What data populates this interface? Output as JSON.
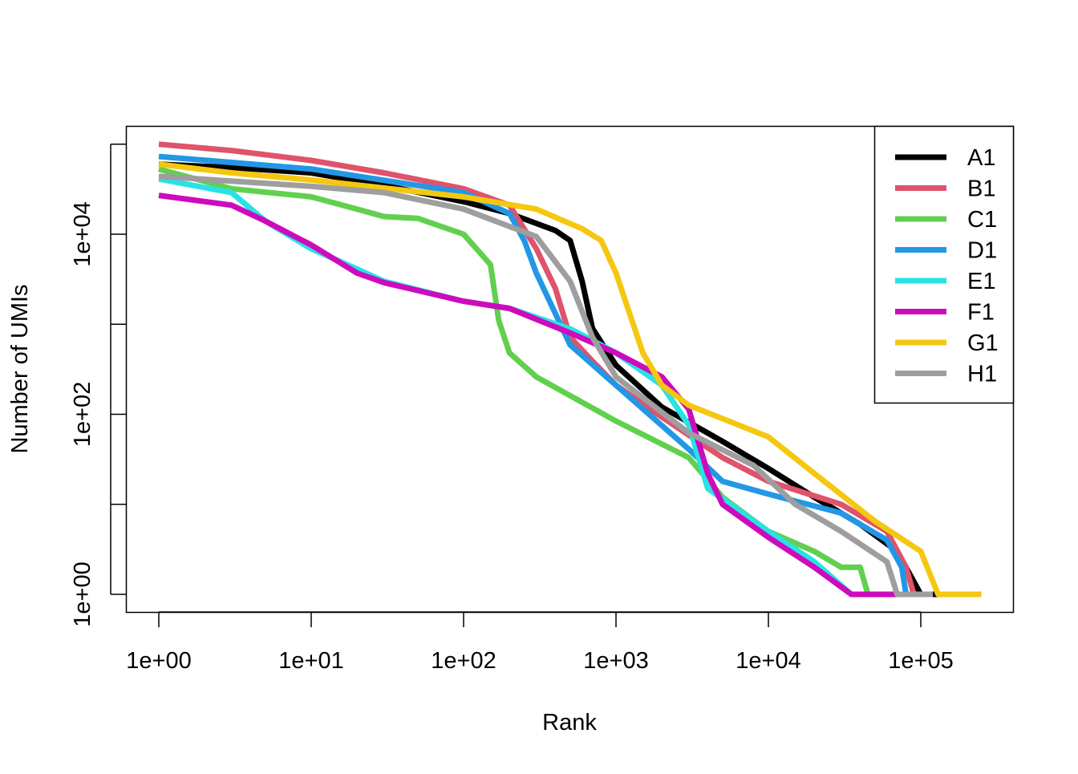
{
  "chart_data": {
    "type": "line",
    "title": "",
    "xlabel": "Rank",
    "ylabel": "Number of UMIs",
    "xscale": "log",
    "yscale": "log",
    "xlim": [
      1,
      250000
    ],
    "ylim": [
      1,
      100000
    ],
    "x_ticks": [
      1,
      10,
      100,
      1000,
      10000,
      100000
    ],
    "x_tick_labels": [
      "1e+00",
      "1e+01",
      "1e+02",
      "1e+03",
      "1e+04",
      "1e+05"
    ],
    "y_ticks": [
      1,
      10,
      100,
      1000,
      10000,
      100000
    ],
    "y_tick_labels": [
      "1e+00",
      "",
      "1e+02",
      "",
      "1e+04",
      ""
    ],
    "grid": false,
    "legend_position": "top-right",
    "series": [
      {
        "name": "A1",
        "color": "#000000",
        "points": [
          [
            1,
            60000
          ],
          [
            3,
            55000
          ],
          [
            10,
            48000
          ],
          [
            30,
            35000
          ],
          [
            100,
            23000
          ],
          [
            200,
            17000
          ],
          [
            400,
            11000
          ],
          [
            500,
            8500
          ],
          [
            600,
            3000
          ],
          [
            700,
            900
          ],
          [
            1000,
            350
          ],
          [
            2000,
            120
          ],
          [
            5000,
            50
          ],
          [
            10000,
            25
          ],
          [
            20000,
            12
          ],
          [
            40000,
            6
          ],
          [
            70000,
            3
          ],
          [
            100000,
            1
          ],
          [
            140000,
            1
          ]
        ]
      },
      {
        "name": "B1",
        "color": "#DF536B",
        "points": [
          [
            1,
            100000
          ],
          [
            3,
            85000
          ],
          [
            10,
            66000
          ],
          [
            30,
            48000
          ],
          [
            100,
            32000
          ],
          [
            200,
            21000
          ],
          [
            300,
            6900
          ],
          [
            400,
            2500
          ],
          [
            500,
            720
          ],
          [
            700,
            390
          ],
          [
            1000,
            210
          ],
          [
            2000,
            93
          ],
          [
            5000,
            33
          ],
          [
            10000,
            18
          ],
          [
            30000,
            10
          ],
          [
            60000,
            5
          ],
          [
            80000,
            2
          ],
          [
            90000,
            1
          ]
        ]
      },
      {
        "name": "C1",
        "color": "#61D04F",
        "points": [
          [
            1,
            53000
          ],
          [
            3,
            32000
          ],
          [
            10,
            26000
          ],
          [
            20,
            19000
          ],
          [
            30,
            15700
          ],
          [
            50,
            15000
          ],
          [
            100,
            10000
          ],
          [
            150,
            4600
          ],
          [
            170,
            1100
          ],
          [
            200,
            480
          ],
          [
            300,
            260
          ],
          [
            1000,
            84
          ],
          [
            3000,
            33
          ],
          [
            5000,
            12
          ],
          [
            10000,
            5
          ],
          [
            20000,
            3
          ],
          [
            30000,
            2
          ],
          [
            40000,
            2
          ],
          [
            45000,
            1
          ]
        ]
      },
      {
        "name": "D1",
        "color": "#2297E6",
        "points": [
          [
            1,
            73000
          ],
          [
            10,
            53000
          ],
          [
            100,
            29000
          ],
          [
            200,
            17000
          ],
          [
            250,
            8500
          ],
          [
            300,
            3700
          ],
          [
            500,
            590
          ],
          [
            1000,
            210
          ],
          [
            3000,
            41
          ],
          [
            5000,
            18
          ],
          [
            10000,
            13
          ],
          [
            30000,
            8
          ],
          [
            60000,
            4
          ],
          [
            75000,
            2
          ],
          [
            80000,
            1
          ]
        ]
      },
      {
        "name": "E1",
        "color": "#28E2E5",
        "points": [
          [
            1,
            41000
          ],
          [
            3,
            29000
          ],
          [
            5,
            14000
          ],
          [
            10,
            6900
          ],
          [
            20,
            4100
          ],
          [
            30,
            3000
          ],
          [
            100,
            1800
          ],
          [
            200,
            1500
          ],
          [
            500,
            890
          ],
          [
            1000,
            480
          ],
          [
            2000,
            210
          ],
          [
            3000,
            76
          ],
          [
            4000,
            15
          ],
          [
            10000,
            5
          ],
          [
            20000,
            2.3
          ],
          [
            35000,
            1
          ],
          [
            50000,
            1
          ]
        ]
      },
      {
        "name": "F1",
        "color": "#CD0BBC",
        "points": [
          [
            1,
            27000
          ],
          [
            3,
            21000
          ],
          [
            5,
            14000
          ],
          [
            10,
            7600
          ],
          [
            20,
            3700
          ],
          [
            30,
            2900
          ],
          [
            100,
            1800
          ],
          [
            200,
            1500
          ],
          [
            500,
            800
          ],
          [
            1000,
            480
          ],
          [
            2000,
            260
          ],
          [
            3000,
            114
          ],
          [
            4000,
            22
          ],
          [
            5000,
            10
          ],
          [
            10000,
            4.3
          ],
          [
            20000,
            2
          ],
          [
            35000,
            1
          ],
          [
            90000,
            1
          ]
        ]
      },
      {
        "name": "G1",
        "color": "#F5C710",
        "points": [
          [
            1,
            60000
          ],
          [
            3,
            48000
          ],
          [
            10,
            40000
          ],
          [
            100,
            26000
          ],
          [
            300,
            19000
          ],
          [
            600,
            11500
          ],
          [
            800,
            8500
          ],
          [
            1000,
            3700
          ],
          [
            1500,
            480
          ],
          [
            2000,
            210
          ],
          [
            3000,
            126
          ],
          [
            10000,
            56
          ],
          [
            20000,
            22
          ],
          [
            50000,
            6.5
          ],
          [
            100000,
            3
          ],
          [
            130000,
            1
          ],
          [
            250000,
            1
          ]
        ]
      },
      {
        "name": "H1",
        "color": "#9E9E9E",
        "points": [
          [
            1,
            44000
          ],
          [
            10,
            34000
          ],
          [
            30,
            29000
          ],
          [
            100,
            19000
          ],
          [
            300,
            9400
          ],
          [
            500,
            3000
          ],
          [
            700,
            720
          ],
          [
            1000,
            260
          ],
          [
            3000,
            62
          ],
          [
            8000,
            27
          ],
          [
            15000,
            10
          ],
          [
            30000,
            5
          ],
          [
            60000,
            2.3
          ],
          [
            70000,
            1
          ],
          [
            120000,
            1
          ]
        ]
      }
    ]
  }
}
